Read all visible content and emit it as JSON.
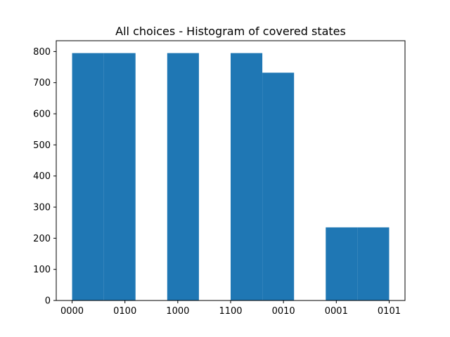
{
  "chart_data": {
    "type": "bar",
    "title": "All choices - Histogram of covered states",
    "xlabel": "",
    "ylabel": "",
    "categories": [
      "0000",
      "0100",
      "1000",
      "1100",
      "0010",
      "0001",
      "0101"
    ],
    "x_range": [
      0,
      6
    ],
    "bins": [
      {
        "start": 0.0,
        "end": 0.6,
        "value": 795
      },
      {
        "start": 0.6,
        "end": 1.2,
        "value": 795
      },
      {
        "start": 1.8,
        "end": 2.4,
        "value": 795
      },
      {
        "start": 3.0,
        "end": 3.6,
        "value": 795
      },
      {
        "start": 3.6,
        "end": 4.2,
        "value": 732
      },
      {
        "start": 4.8,
        "end": 5.4,
        "value": 235
      },
      {
        "start": 5.4,
        "end": 6.0,
        "value": 235
      }
    ],
    "yticks": [
      0,
      100,
      200,
      300,
      400,
      500,
      600,
      700,
      800
    ],
    "ylim": [
      0,
      834.75
    ],
    "grid": false,
    "bar_color": "#1f77b4"
  }
}
